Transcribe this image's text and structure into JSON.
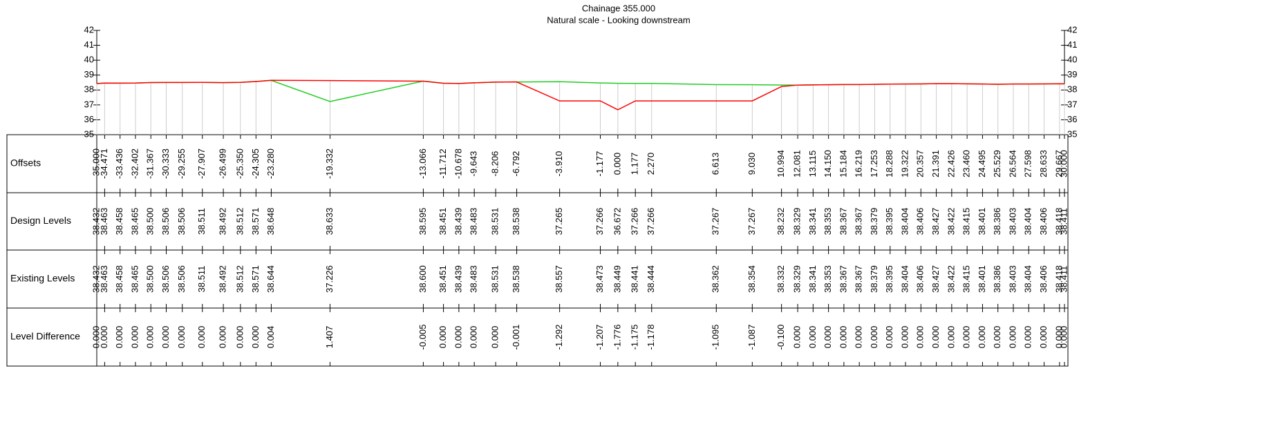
{
  "chart_data": {
    "type": "line",
    "title": "Chainage 355.000",
    "subtitle": "Natural scale - Looking downstream",
    "x_label": "Offsets",
    "x": [
      -35.0,
      -34.471,
      -33.436,
      -32.402,
      -31.367,
      -30.333,
      -29.255,
      -27.907,
      -26.499,
      -25.35,
      -24.305,
      -23.28,
      -19.332,
      -13.066,
      -11.712,
      -10.678,
      -9.643,
      -8.206,
      -6.792,
      -3.91,
      -1.177,
      0.0,
      1.177,
      2.27,
      6.613,
      9.03,
      10.994,
      12.081,
      13.115,
      14.15,
      15.184,
      16.219,
      17.253,
      18.288,
      19.322,
      20.357,
      21.391,
      22.426,
      23.46,
      24.495,
      25.529,
      26.564,
      27.598,
      28.633,
      29.667,
      30.0
    ],
    "x_labels": [
      "-35.000",
      "-34.471",
      "-33.436",
      "-32.402",
      "-31.367",
      "-30.333",
      "-29.255",
      "-27.907",
      "-26.499",
      "-25.350",
      "-24.305",
      "-23.280",
      "-19.332",
      "-13.066",
      "-11.712",
      "-10.678",
      "-9.643",
      "-8.206",
      "-6.792",
      "-3.910",
      "-1.177",
      "0.000",
      "1.177",
      "2.270",
      "6.613",
      "9.030",
      "10.994",
      "12.081",
      "13.115",
      "14.150",
      "15.184",
      "16.219",
      "17.253",
      "18.288",
      "19.322",
      "20.357",
      "21.391",
      "22.426",
      "23.460",
      "24.495",
      "25.529",
      "26.564",
      "27.598",
      "28.633",
      "29.667",
      "30.000"
    ],
    "xlim": [
      -35,
      30
    ],
    "ylim": [
      35,
      42
    ],
    "yticks": [
      35,
      36,
      37,
      38,
      39,
      40,
      41,
      42
    ],
    "series": [
      {
        "name": "Design Levels",
        "color": "#ff0000",
        "values": [
          38.432,
          38.463,
          38.458,
          38.465,
          38.5,
          38.506,
          38.506,
          38.511,
          38.492,
          38.512,
          38.571,
          38.648,
          38.633,
          38.595,
          38.451,
          38.439,
          38.483,
          38.531,
          38.538,
          37.265,
          37.266,
          36.672,
          37.266,
          37.266,
          37.267,
          37.267,
          38.232,
          38.329,
          38.341,
          38.353,
          38.367,
          38.367,
          38.379,
          38.395,
          38.404,
          38.406,
          38.427,
          38.422,
          38.415,
          38.401,
          38.386,
          38.403,
          38.404,
          38.406,
          38.418,
          38.411
        ],
        "value_labels": [
          "38.432",
          "38.463",
          "38.458",
          "38.465",
          "38.500",
          "38.506",
          "38.506",
          "38.511",
          "38.492",
          "38.512",
          "38.571",
          "38.648",
          "38.633",
          "38.595",
          "38.451",
          "38.439",
          "38.483",
          "38.531",
          "38.538",
          "37.265",
          "37.266",
          "36.672",
          "37.266",
          "37.266",
          "37.267",
          "37.267",
          "38.232",
          "38.329",
          "38.341",
          "38.353",
          "38.367",
          "38.367",
          "38.379",
          "38.395",
          "38.404",
          "38.406",
          "38.427",
          "38.422",
          "38.415",
          "38.401",
          "38.386",
          "38.403",
          "38.404",
          "38.406",
          "38.418",
          "38.411"
        ]
      },
      {
        "name": "Existing Levels",
        "color": "#22cc22",
        "values": [
          38.432,
          38.463,
          38.458,
          38.465,
          38.5,
          38.506,
          38.506,
          38.511,
          38.492,
          38.512,
          38.571,
          38.644,
          37.226,
          38.6,
          38.451,
          38.439,
          38.483,
          38.531,
          38.538,
          38.557,
          38.473,
          38.449,
          38.441,
          38.444,
          38.362,
          38.354,
          38.332,
          38.329,
          38.341,
          38.353,
          38.367,
          38.367,
          38.379,
          38.395,
          38.404,
          38.406,
          38.427,
          38.422,
          38.415,
          38.401,
          38.386,
          38.403,
          38.404,
          38.406,
          38.418,
          38.411
        ],
        "value_labels": [
          "38.432",
          "38.463",
          "38.458",
          "38.465",
          "38.500",
          "38.506",
          "38.506",
          "38.511",
          "38.492",
          "38.512",
          "38.571",
          "38.644",
          "37.226",
          "38.600",
          "38.451",
          "38.439",
          "38.483",
          "38.531",
          "38.538",
          "38.557",
          "38.473",
          "38.449",
          "38.441",
          "38.444",
          "38.362",
          "38.354",
          "38.332",
          "38.329",
          "38.341",
          "38.353",
          "38.367",
          "38.367",
          "38.379",
          "38.395",
          "38.404",
          "38.406",
          "38.427",
          "38.422",
          "38.415",
          "38.401",
          "38.386",
          "38.403",
          "38.404",
          "38.406",
          "38.418",
          "38.411"
        ]
      }
    ],
    "difference": {
      "name": "Level Difference",
      "values": [
        0.0,
        0.0,
        0.0,
        0.0,
        0.0,
        0.0,
        0.0,
        0.0,
        0.0,
        0.0,
        0.0,
        0.004,
        1.407,
        -0.005,
        0.0,
        0.0,
        0.0,
        0.0,
        -0.001,
        -1.292,
        -1.207,
        -1.776,
        -1.175,
        -1.178,
        -1.095,
        -1.087,
        -0.1,
        0.0,
        0.0,
        0.0,
        0.0,
        0.0,
        0.0,
        0.0,
        0.0,
        0.0,
        0.0,
        0.0,
        0.0,
        0.0,
        0.0,
        0.0,
        0.0,
        0.0,
        0.0,
        0.0
      ],
      "value_labels": [
        "0.000",
        "0.000",
        "0.000",
        "0.000",
        "0.000",
        "0.000",
        "0.000",
        "0.000",
        "0.000",
        "0.000",
        "0.000",
        "0.004",
        "1.407",
        "-0.005",
        "0.000",
        "0.000",
        "0.000",
        "0.000",
        "-0.001",
        "-1.292",
        "-1.207",
        "-1.776",
        "-1.175",
        "-1.178",
        "-1.095",
        "-1.087",
        "-0.100",
        "0.000",
        "0.000",
        "0.000",
        "0.000",
        "0.000",
        "0.000",
        "0.000",
        "0.000",
        "0.000",
        "0.000",
        "0.000",
        "0.000",
        "0.000",
        "0.000",
        "0.000",
        "0.000",
        "0.000",
        "0.000",
        "0.000"
      ]
    }
  }
}
